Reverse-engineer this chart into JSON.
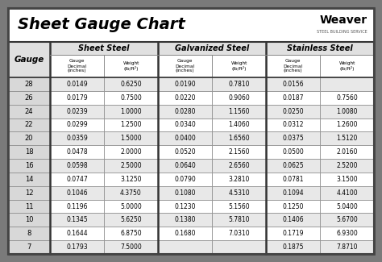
{
  "title": "Sheet Gauge Chart",
  "bg_outer": "#7a7a7a",
  "bg_inner": "#ffffff",
  "header_row_bg": "#ffffff",
  "gauge_col_bg": "#e0e0e0",
  "data_row_alt": "#e8e8e8",
  "data_row_norm": "#ffffff",
  "border_color": "#555555",
  "thick_border": "#222222",
  "col_groups": [
    "Sheet Steel",
    "Galvanized Steel",
    "Stainless Steel"
  ],
  "gauges": [
    "28",
    "26",
    "24",
    "22",
    "20",
    "18",
    "16",
    "14",
    "12",
    "11",
    "10",
    "8",
    "7"
  ],
  "sheet_steel": [
    [
      "0.0149",
      "0.6250"
    ],
    [
      "0.0179",
      "0.7500"
    ],
    [
      "0.0239",
      "1.0000"
    ],
    [
      "0.0299",
      "1.2500"
    ],
    [
      "0.0359",
      "1.5000"
    ],
    [
      "0.0478",
      "2.0000"
    ],
    [
      "0.0598",
      "2.5000"
    ],
    [
      "0.0747",
      "3.1250"
    ],
    [
      "0.1046",
      "4.3750"
    ],
    [
      "0.1196",
      "5.0000"
    ],
    [
      "0.1345",
      "5.6250"
    ],
    [
      "0.1644",
      "6.8750"
    ],
    [
      "0.1793",
      "7.5000"
    ]
  ],
  "galvanized_steel": [
    [
      "0.0190",
      "0.7810"
    ],
    [
      "0.0220",
      "0.9060"
    ],
    [
      "0.0280",
      "1.1560"
    ],
    [
      "0.0340",
      "1.4060"
    ],
    [
      "0.0400",
      "1.6560"
    ],
    [
      "0.0520",
      "2.1560"
    ],
    [
      "0.0640",
      "2.6560"
    ],
    [
      "0.0790",
      "3.2810"
    ],
    [
      "0.1080",
      "4.5310"
    ],
    [
      "0.1230",
      "5.1560"
    ],
    [
      "0.1380",
      "5.7810"
    ],
    [
      "0.1680",
      "7.0310"
    ],
    [
      "",
      ""
    ]
  ],
  "stainless_steel": [
    [
      "0.0156",
      ""
    ],
    [
      "0.0187",
      "0.7560"
    ],
    [
      "0.0250",
      "1.0080"
    ],
    [
      "0.0312",
      "1.2600"
    ],
    [
      "0.0375",
      "1.5120"
    ],
    [
      "0.0500",
      "2.0160"
    ],
    [
      "0.0625",
      "2.5200"
    ],
    [
      "0.0781",
      "3.1500"
    ],
    [
      "0.1094",
      "4.4100"
    ],
    [
      "0.1250",
      "5.0400"
    ],
    [
      "0.1406",
      "5.6700"
    ],
    [
      "0.1719",
      "6.9300"
    ],
    [
      "0.1875",
      "7.8710"
    ]
  ]
}
